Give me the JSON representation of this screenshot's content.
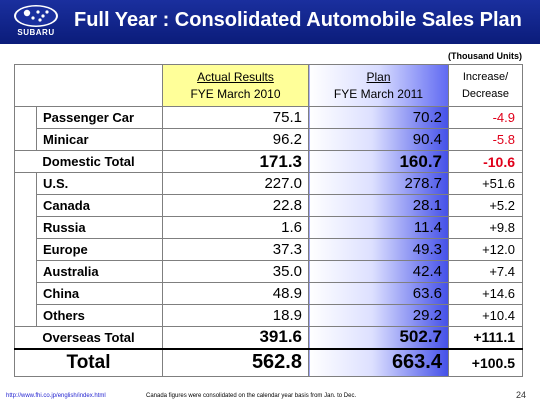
{
  "header": {
    "title": "Full Year : Consolidated Automobile Sales Plan",
    "logo_text": "SUBARU"
  },
  "units": "(Thousand Units)",
  "table": {
    "columns": {
      "actual_line1": "Actual Results",
      "actual_line2": "FYE March 2010",
      "plan_line1": "Plan",
      "plan_line2": "FYE March 2011",
      "inc_line1": "Increase/",
      "inc_line2": "Decrease"
    },
    "domestic_rows": [
      {
        "label": "Passenger Car",
        "actual": "75.1",
        "plan": "70.2",
        "change": "-4.9"
      },
      {
        "label": "Minicar",
        "actual": "96.2",
        "plan": "90.4",
        "change": "-5.8"
      }
    ],
    "domestic_total": {
      "label": "Domestic Total",
      "actual": "171.3",
      "plan": "160.7",
      "change": "-10.6"
    },
    "overseas_rows": [
      {
        "label": "U.S.",
        "actual": "227.0",
        "plan": "278.7",
        "change": "+51.6"
      },
      {
        "label": "Canada",
        "actual": "22.8",
        "plan": "28.1",
        "change": "+5.2"
      },
      {
        "label": "Russia",
        "actual": "1.6",
        "plan": "11.4",
        "change": "+9.8"
      },
      {
        "label": "Europe",
        "actual": "37.3",
        "plan": "49.3",
        "change": "+12.0"
      },
      {
        "label": "Australia",
        "actual": "35.0",
        "plan": "42.4",
        "change": "+7.4"
      },
      {
        "label": "China",
        "actual": "48.9",
        "plan": "63.6",
        "change": "+14.6"
      },
      {
        "label": "Others",
        "actual": "18.9",
        "plan": "29.2",
        "change": "+10.4"
      }
    ],
    "overseas_total": {
      "label": "Overseas Total",
      "actual": "391.6",
      "plan": "502.7",
      "change": "+111.1"
    },
    "grand_total": {
      "label": "Total",
      "actual": "562.8",
      "plan": "663.4",
      "change": "+100.5"
    }
  },
  "footer": {
    "url": "http://www.fhi.co.jp/english/index.html",
    "note": "Canada figures were consolidated on the calendar year basis from Jan. to Dec.",
    "page": "24"
  },
  "colors": {
    "header_blue": "#0b1c7a",
    "actual_header": "#ffff99",
    "plan_blue": "#4450e8",
    "negative_red": "#e0001a"
  }
}
